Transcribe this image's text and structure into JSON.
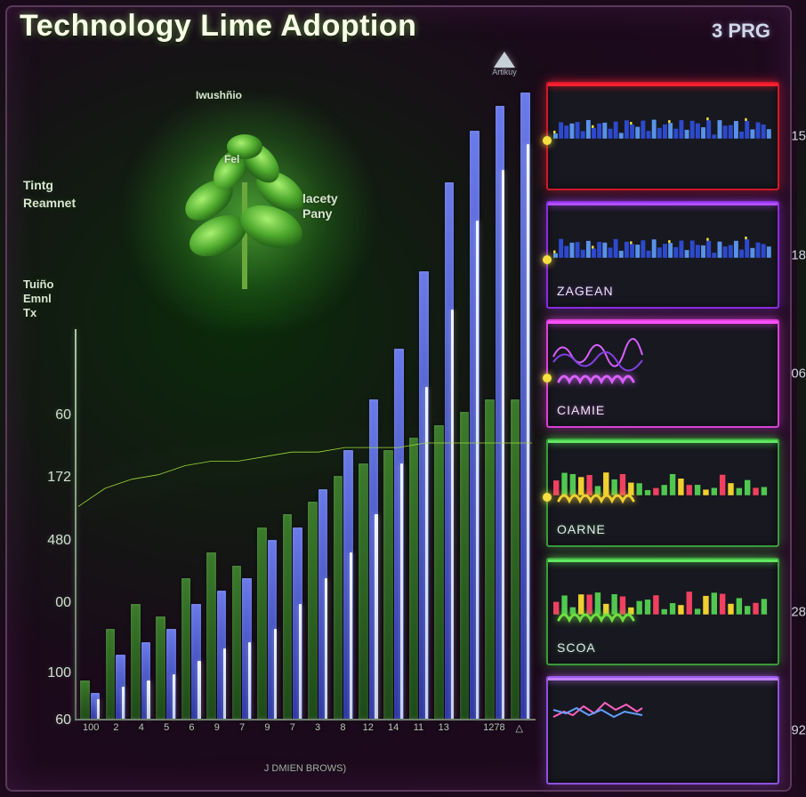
{
  "title": "Technology Lime Adoption",
  "corner_label": "3 PRG",
  "pointer_sub": "Artikuy",
  "background": {
    "radial_center": "#0a2a0a",
    "radial_mid": "#1a0a1a",
    "radial_edge": "#200a20",
    "frame_border": "#5a3a5a"
  },
  "chart": {
    "type": "bar",
    "labels": {
      "top_left_1": "Tintg",
      "top_left_2": "Reamnet",
      "mid_left_1": "Tuiño",
      "mid_left_2": "Emnl",
      "mid_left_3": "Tx",
      "callout_top": "Iwushñio",
      "callout_mid": "Fel",
      "callout_right_1": "lacety",
      "callout_right_2": "Pany"
    },
    "y_ticks": [
      {
        "pos": 0.0,
        "label": "60"
      },
      {
        "pos": 0.12,
        "label": "100"
      },
      {
        "pos": 0.3,
        "label": "00"
      },
      {
        "pos": 0.46,
        "label": "480"
      },
      {
        "pos": 0.62,
        "label": "172"
      },
      {
        "pos": 0.78,
        "label": "60"
      }
    ],
    "x_labels": [
      "100",
      "2",
      "4",
      "5",
      "6",
      "9",
      "7",
      "9",
      "7",
      "3",
      "8",
      "12",
      "14",
      "11",
      "13",
      "",
      "1278",
      "△"
    ],
    "x_caption": "J DMIEN BROWS)",
    "series_colors": {
      "a_top": "#3a7a2a",
      "a_bot": "#1e4a18",
      "b_top": "#6a7ae8",
      "b_bot": "#2832a0",
      "accent_top": "#f0f4ff",
      "accent_bot": "#c8d0e8"
    },
    "bars": [
      {
        "a": 6,
        "b": 4,
        "c": 3
      },
      {
        "a": 14,
        "b": 10,
        "c": 5
      },
      {
        "a": 18,
        "b": 12,
        "c": 6
      },
      {
        "a": 16,
        "b": 14,
        "c": 7
      },
      {
        "a": 22,
        "b": 18,
        "c": 9
      },
      {
        "a": 26,
        "b": 20,
        "c": 11
      },
      {
        "a": 24,
        "b": 22,
        "c": 12
      },
      {
        "a": 30,
        "b": 28,
        "c": 14
      },
      {
        "a": 32,
        "b": 30,
        "c": 18
      },
      {
        "a": 34,
        "b": 36,
        "c": 22
      },
      {
        "a": 38,
        "b": 42,
        "c": 26
      },
      {
        "a": 40,
        "b": 50,
        "c": 32
      },
      {
        "a": 42,
        "b": 58,
        "c": 40
      },
      {
        "a": 44,
        "b": 70,
        "c": 52
      },
      {
        "a": 46,
        "b": 84,
        "c": 64
      },
      {
        "a": 48,
        "b": 92,
        "c": 78
      },
      {
        "a": 50,
        "b": 96,
        "c": 86
      },
      {
        "a": 50,
        "b": 98,
        "c": 90
      }
    ],
    "trend_line": {
      "color": "#9fd93a",
      "width": 4,
      "points_y": [
        6,
        10,
        12,
        13,
        15,
        16,
        16,
        17,
        18,
        18,
        19,
        19,
        19,
        20,
        20,
        20,
        20,
        20
      ]
    },
    "plant_colors": {
      "leaf_light": "#7de04a",
      "leaf_dark": "#2f7a22",
      "stem": "#6aa83c"
    }
  },
  "side_panels": [
    {
      "label": "",
      "value": "15",
      "border": "#d01828",
      "glow": "rgba(255,40,60,0.5)",
      "top": "#ff2030",
      "mini": "skyline",
      "scribble": null
    },
    {
      "label": "ZAGEAN",
      "value": "18",
      "border": "#8a2be2",
      "glow": "rgba(160,60,240,0.5)",
      "top": "#b050ff",
      "mini": "skyline",
      "scribble": null
    },
    {
      "label": "CIAMIE",
      "value": "06",
      "border": "#d840d8",
      "glow": "rgba(240,80,240,0.5)",
      "top": "#ff50ff",
      "mini": "wave",
      "scribble": "#d860ff"
    },
    {
      "label": "OARNE",
      "value": "",
      "border": "#3a9a3a",
      "glow": "rgba(80,220,80,0.45)",
      "top": "#60e860",
      "mini": "bars",
      "scribble": "#f0d030"
    },
    {
      "label": "SCOA",
      "value": "28",
      "border": "#3a9a3a",
      "glow": "rgba(80,220,80,0.45)",
      "top": "#60e860",
      "mini": "bars",
      "scribble": "#70e040"
    },
    {
      "label": "",
      "value": "92",
      "border": "#9050e0",
      "glow": "rgba(160,100,240,0.4)",
      "top": "#c080ff",
      "mini": "line",
      "scribble": null
    }
  ]
}
